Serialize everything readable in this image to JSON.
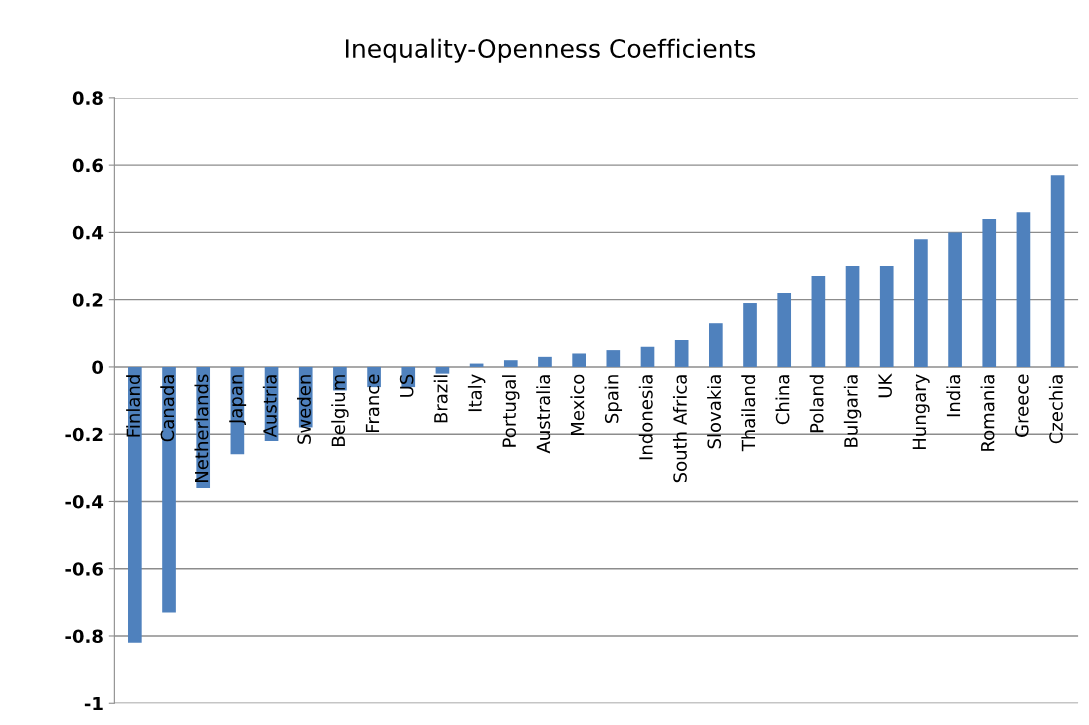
{
  "chart_data": {
    "type": "bar",
    "title": "Inequality-Openness Coefficients",
    "categories": [
      "Finland",
      "Canada",
      "Netherlands",
      "Japan",
      "Austria",
      "Sweden",
      "Belgium",
      "France",
      "US",
      "Brazil",
      "Italy",
      "Portugal",
      "Australia",
      "Mexico",
      "Spain",
      "Indonesia",
      "South Africa",
      "Slovakia",
      "Thailand",
      "China",
      "Poland",
      "Bulgaria",
      "UK",
      "Hungary",
      "India",
      "Romania",
      "Greece",
      "Czechia"
    ],
    "values": [
      -0.82,
      -0.73,
      -0.36,
      -0.26,
      -0.22,
      -0.18,
      -0.07,
      -0.06,
      -0.06,
      -0.02,
      0.01,
      0.02,
      0.03,
      0.04,
      0.05,
      0.06,
      0.08,
      0.13,
      0.19,
      0.22,
      0.27,
      0.3,
      0.3,
      0.38,
      0.4,
      0.44,
      0.46,
      0.57
    ],
    "color": "#4f81bd",
    "ylim": [
      -1,
      0.8
    ],
    "yticks": [
      {
        "value": -1,
        "label": "-1"
      },
      {
        "value": -0.8,
        "label": "-0.8"
      },
      {
        "value": -0.6,
        "label": "-0.6"
      },
      {
        "value": -0.4,
        "label": "-0.4"
      },
      {
        "value": -0.2,
        "label": "-0.2"
      },
      {
        "value": 0,
        "label": "0"
      },
      {
        "value": 0.2,
        "label": "0.2"
      },
      {
        "value": 0.4,
        "label": "0.4"
      },
      {
        "value": 0.6,
        "label": "0.6"
      },
      {
        "value": 0.8,
        "label": "0.8"
      }
    ],
    "grid": "y"
  }
}
